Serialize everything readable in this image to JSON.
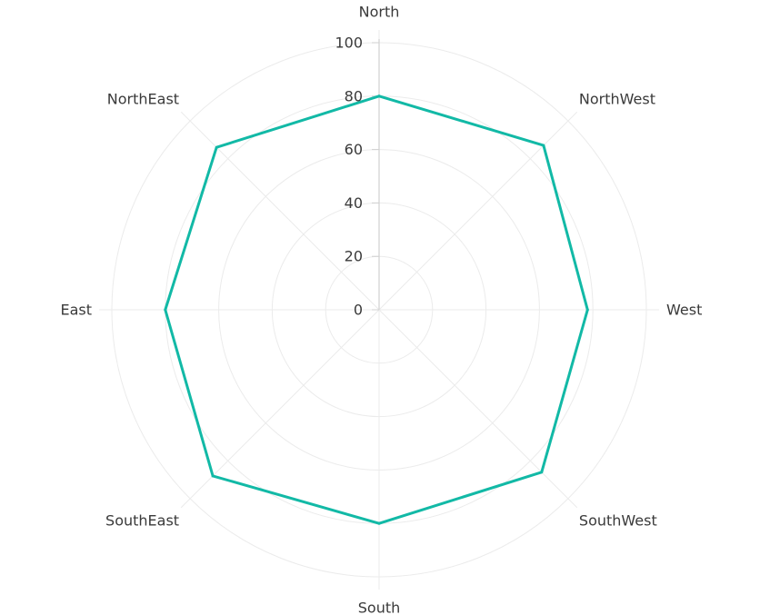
{
  "chart_data": {
    "type": "radar",
    "title": "",
    "categories": [
      "North",
      "NorthWest",
      "West",
      "SouthWest",
      "South",
      "SouthEast",
      "East",
      "NorthEast"
    ],
    "series": [
      {
        "values": [
          80,
          87,
          78,
          86,
          80,
          88,
          80,
          86
        ],
        "color": "#12b9a6"
      }
    ],
    "r_axis": {
      "min": 0,
      "max": 100,
      "ticks": [
        0,
        20,
        40,
        60,
        80,
        100
      ]
    },
    "grid": true,
    "grid_color": "#ebebeb",
    "axis_color": "#d0d0d0"
  }
}
